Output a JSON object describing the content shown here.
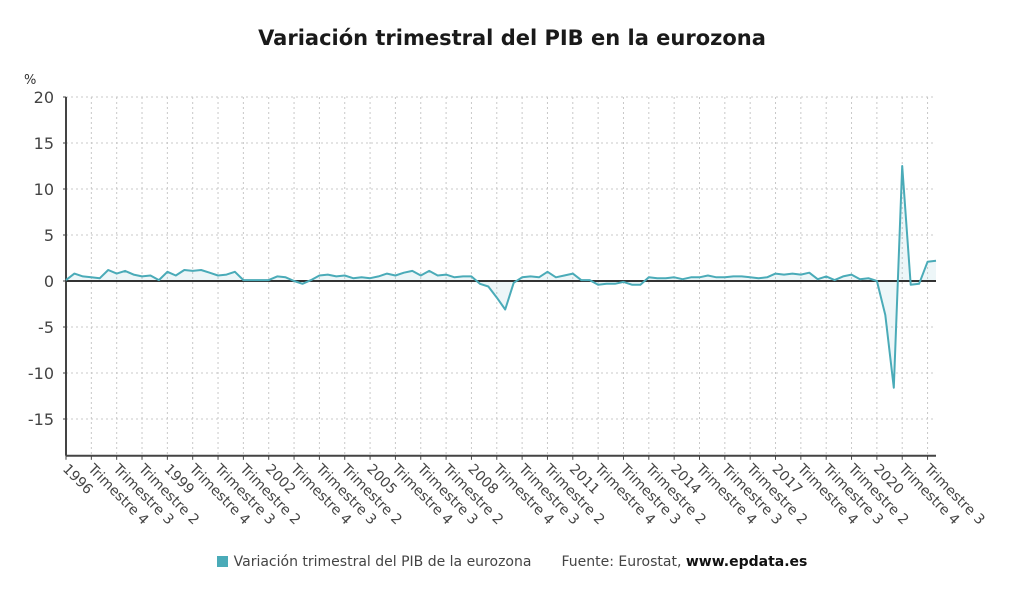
{
  "chart_data": {
    "type": "area",
    "title": "Variación trimestral del PIB en la eurozona",
    "ylabel": "%",
    "xlabel": "",
    "ylim": [
      -19,
      20
    ],
    "yticks": [
      20,
      15,
      10,
      5,
      0,
      -5,
      -10,
      -15
    ],
    "grid": true,
    "legend_position": "bottom",
    "x_tick_labels": [
      "1996",
      "Trimestre 4",
      "Trimestre 3",
      "Trimestre 2",
      "1999",
      "Trimestre 4",
      "Trimestre 3",
      "Trimestre 2",
      "2002",
      "Trimestre 4",
      "Trimestre 3",
      "Trimestre 2",
      "2005",
      "Trimestre 4",
      "Trimestre 3",
      "Trimestre 2",
      "2008",
      "Trimestre 4",
      "Trimestre 3",
      "Trimestre 2",
      "2011",
      "Trimestre 4",
      "Trimestre 3",
      "Trimestre 2",
      "2014",
      "Trimestre 4",
      "Trimestre 3",
      "Trimestre 2",
      "2017",
      "Trimestre 4",
      "Trimestre 3",
      "Trimestre 2",
      "2020",
      "Trimestre 4",
      "Trimestre 3"
    ],
    "x_start": "1996 Trimestre 1",
    "x_end": "2021 Trimestre 3",
    "series": [
      {
        "name": "Variación trimestral del PIB de la eurozona",
        "color": "#4aabb8",
        "values": [
          0.1,
          0.8,
          0.5,
          0.4,
          0.3,
          1.2,
          0.8,
          1.1,
          0.7,
          0.5,
          0.6,
          0.1,
          1.0,
          0.6,
          1.2,
          1.1,
          1.2,
          0.9,
          0.6,
          0.7,
          1.0,
          0.1,
          0.1,
          0.1,
          0.1,
          0.5,
          0.4,
          0.0,
          -0.3,
          0.1,
          0.6,
          0.7,
          0.5,
          0.6,
          0.3,
          0.4,
          0.3,
          0.5,
          0.8,
          0.6,
          0.9,
          1.1,
          0.6,
          1.1,
          0.6,
          0.7,
          0.4,
          0.5,
          0.5,
          -0.3,
          -0.6,
          -1.8,
          -3.1,
          -0.2,
          0.4,
          0.5,
          0.4,
          1.0,
          0.4,
          0.6,
          0.8,
          0.1,
          0.1,
          -0.4,
          -0.3,
          -0.3,
          -0.1,
          -0.4,
          -0.4,
          0.4,
          0.3,
          0.3,
          0.4,
          0.2,
          0.4,
          0.4,
          0.6,
          0.4,
          0.4,
          0.5,
          0.5,
          0.4,
          0.3,
          0.4,
          0.8,
          0.7,
          0.8,
          0.7,
          0.9,
          0.2,
          0.5,
          0.1,
          0.5,
          0.7,
          0.2,
          0.3,
          0.0,
          -3.7,
          -11.6,
          12.5,
          -0.4,
          -0.3,
          2.1,
          2.2
        ]
      }
    ]
  },
  "legend": {
    "label": "Variación trimestral del PIB de la eurozona",
    "source_prefix": "Fuente: Eurostat, ",
    "source_site": "www.epdata.es"
  }
}
